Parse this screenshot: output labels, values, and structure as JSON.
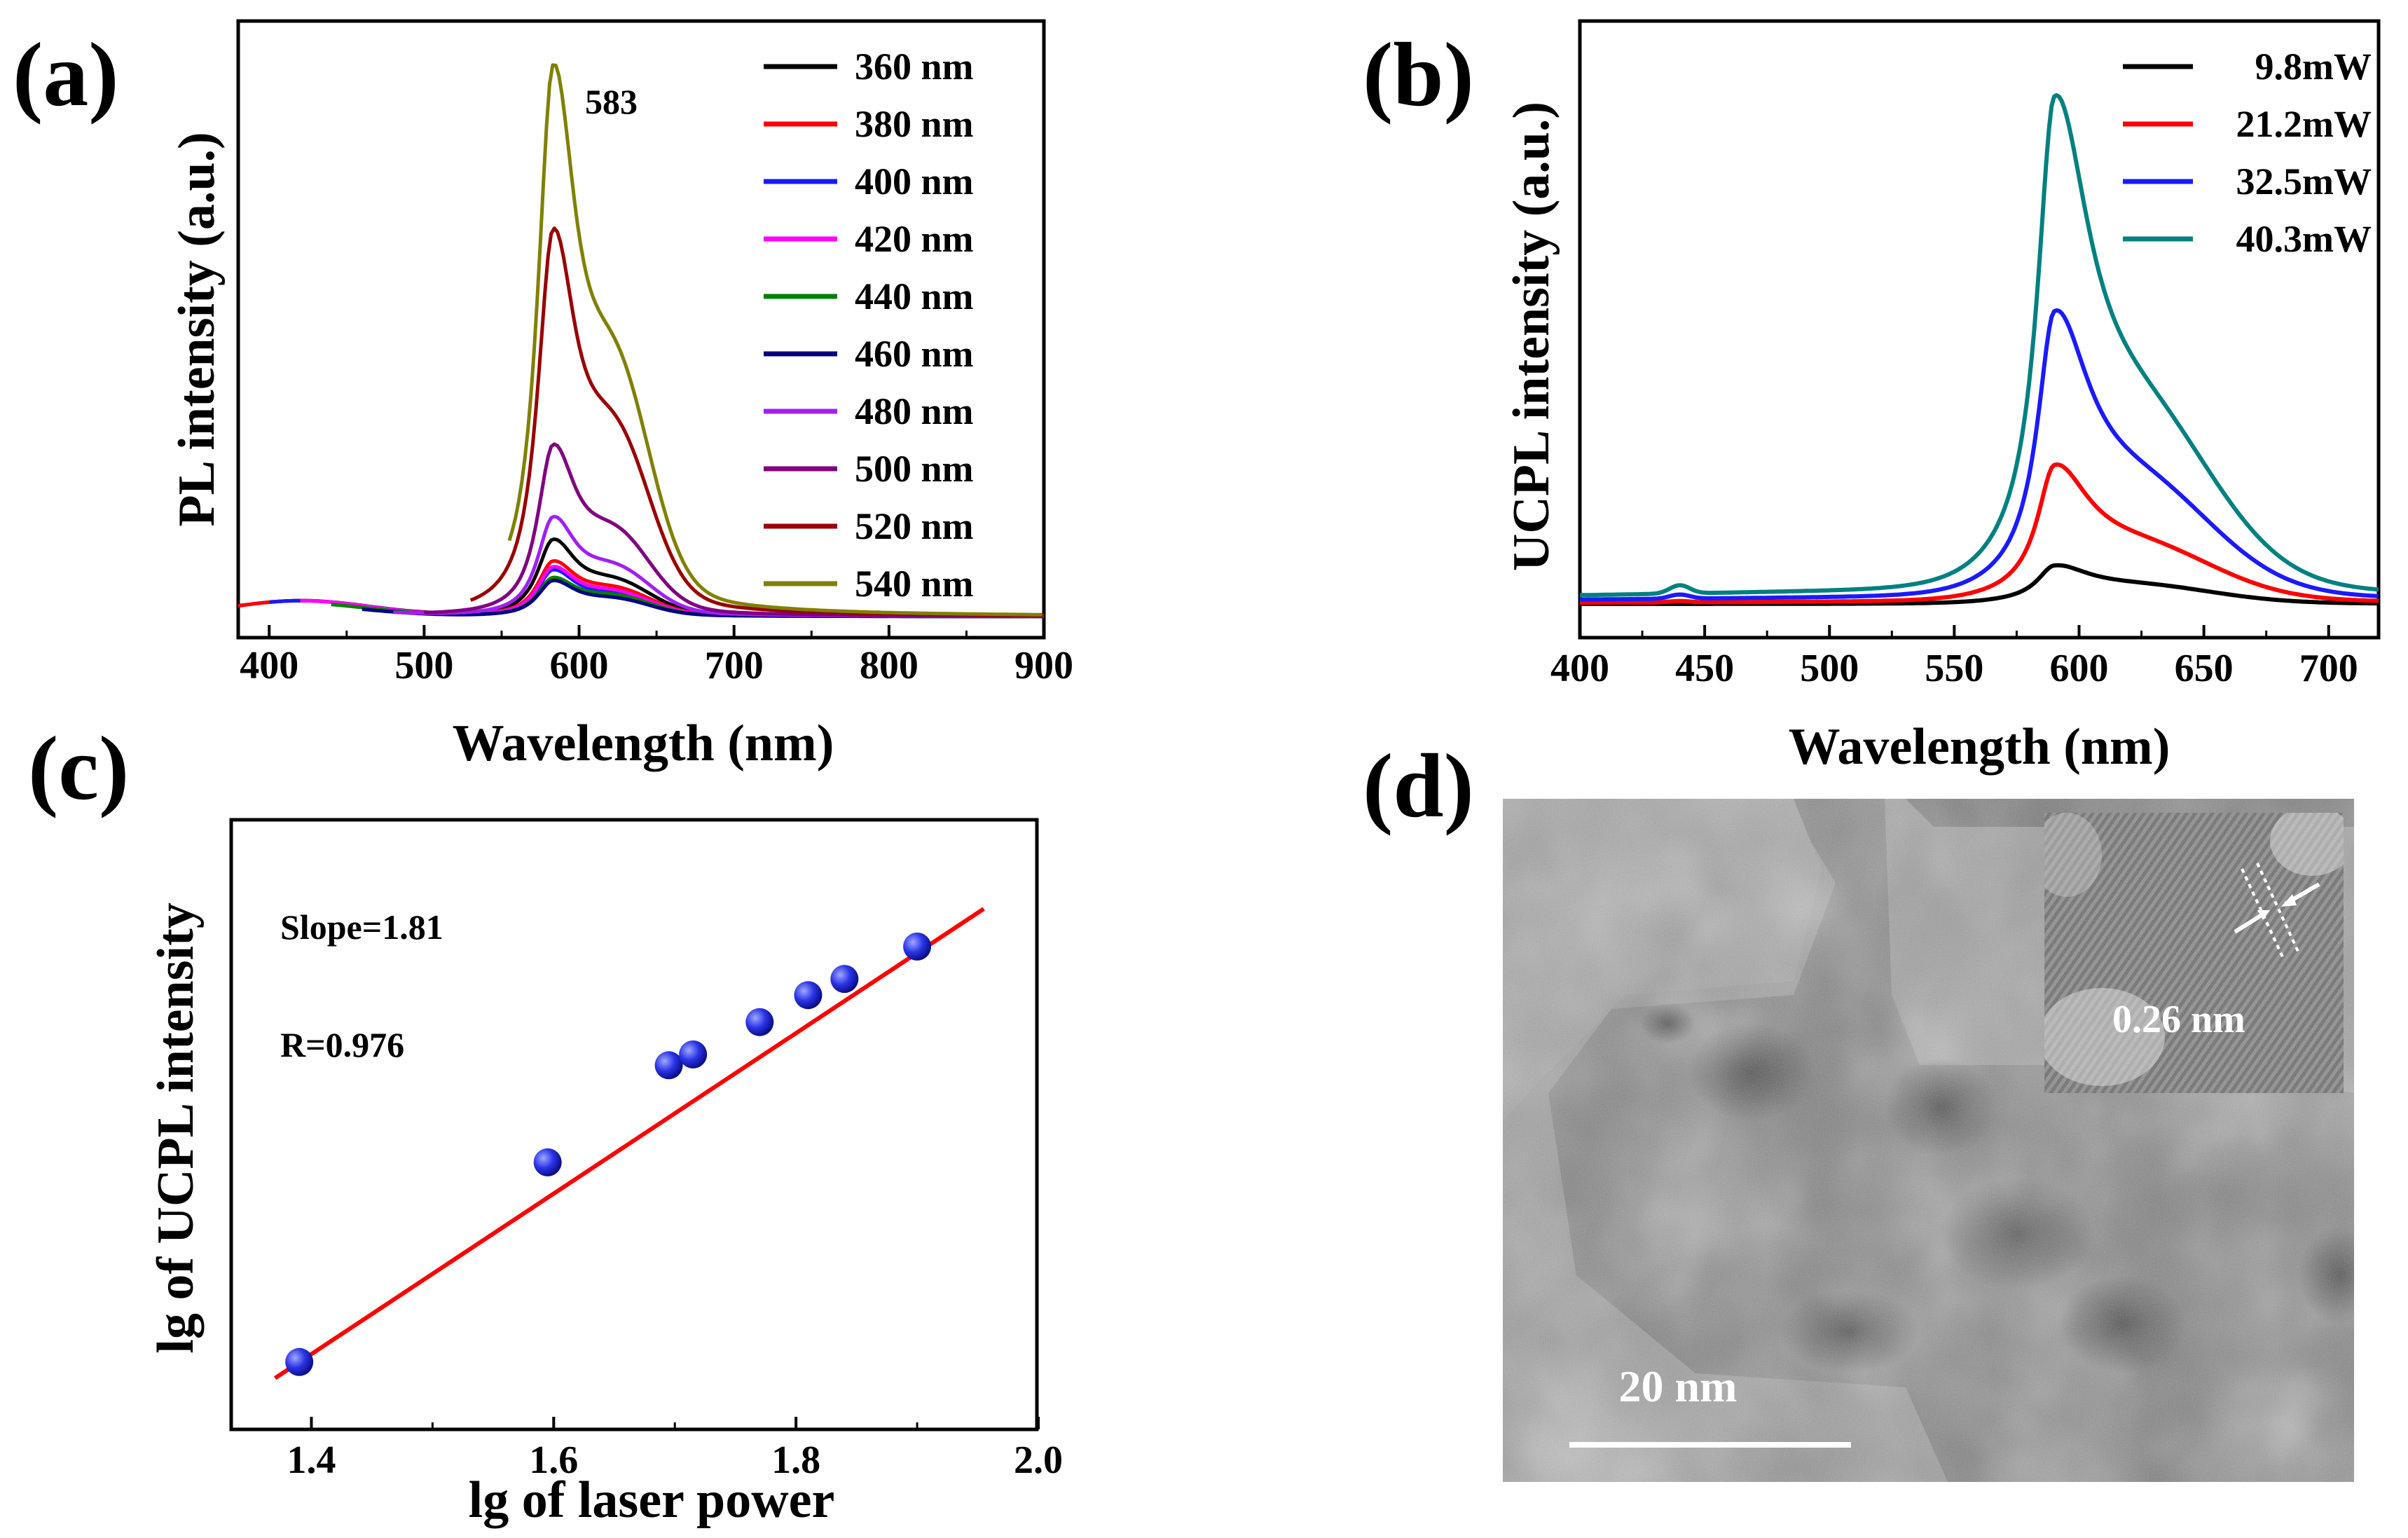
{
  "panels": {
    "a": {
      "letter": "(a)"
    },
    "b": {
      "letter": "(b)"
    },
    "c": {
      "letter": "(c)"
    },
    "d": {
      "letter": "(d)"
    }
  },
  "colors": {
    "black": "#000000",
    "red": "#ff0000",
    "blue": "#1a1aff",
    "magenta": "#ff00ff",
    "green": "#008000",
    "navy": "#000080",
    "violet": "#a020f0",
    "purple": "#800080",
    "darkred": "#990000",
    "olive": "#808000",
    "teal": "#008080",
    "fitred": "#ff0000"
  },
  "chart_data": [
    {
      "id": "a",
      "type": "line",
      "title": "",
      "xlabel": "Wavelength (nm)",
      "ylabel": "PL intensity (a.u.)",
      "xlim": [
        380,
        900
      ],
      "ylim": [
        0,
        1.0
      ],
      "xticks": [
        400,
        500,
        600,
        700,
        800,
        900
      ],
      "peak_annotation": {
        "x": 583,
        "text": "583"
      },
      "legend_position": "top-right",
      "series": [
        {
          "name": "360 nm",
          "color": "#000000",
          "peak": 0.14,
          "shoulder": 0.05,
          "band": 0.03,
          "start": 380
        },
        {
          "name": "380 nm",
          "color": "#ff0000",
          "peak": 0.1,
          "shoulder": 0.04,
          "band": 0.03,
          "start": 380
        },
        {
          "name": "400 nm",
          "color": "#1a1aff",
          "peak": 0.085,
          "shoulder": 0.03,
          "band": 0.03,
          "start": 400
        },
        {
          "name": "420 nm",
          "color": "#ff00ff",
          "peak": 0.09,
          "shoulder": 0.035,
          "band": 0.03,
          "start": 420
        },
        {
          "name": "440 nm",
          "color": "#008000",
          "peak": 0.07,
          "shoulder": 0.03,
          "band": 0.025,
          "start": 440
        },
        {
          "name": "460 nm",
          "color": "#000080",
          "peak": 0.065,
          "shoulder": 0.025,
          "band": 0.02,
          "start": 460
        },
        {
          "name": "480 nm",
          "color": "#a020f0",
          "peak": 0.18,
          "shoulder": 0.07,
          "band": 0.015,
          "start": 480
        },
        {
          "name": "500 nm",
          "color": "#800080",
          "peak": 0.31,
          "shoulder": 0.12,
          "band": 0.01,
          "start": 500
        },
        {
          "name": "520 nm",
          "color": "#990000",
          "peak": 0.7,
          "shoulder": 0.26,
          "band": 0.0,
          "start": 530
        },
        {
          "name": "540 nm",
          "color": "#808000",
          "peak": 1.0,
          "shoulder": 0.35,
          "band": 0.0,
          "start": 555
        }
      ]
    },
    {
      "id": "b",
      "type": "line",
      "title": "",
      "xlabel": "Wavelength (nm)",
      "ylabel": "UCPL intensity (a.u.)",
      "xlim": [
        400,
        720
      ],
      "ylim": [
        0,
        1.0
      ],
      "xticks": [
        400,
        450,
        500,
        550,
        600,
        650,
        700
      ],
      "legend_position": "top-right",
      "series": [
        {
          "name": "9.8mW",
          "color": "#000000",
          "peak": 0.07,
          "tail": 0.03,
          "base": 0.0
        },
        {
          "name": "21.2mW",
          "color": "#ff0000",
          "peak": 0.26,
          "tail": 0.09,
          "base": 0.003
        },
        {
          "name": "32.5mW",
          "color": "#1a1aff",
          "peak": 0.55,
          "tail": 0.18,
          "base": 0.01
        },
        {
          "name": "40.3mW",
          "color": "#008080",
          "peak": 0.97,
          "tail": 0.28,
          "base": 0.02
        }
      ]
    },
    {
      "id": "c",
      "type": "scatter",
      "title": "",
      "xlabel": "lg of laser power",
      "ylabel": "lg of UCPL intensity",
      "xlim": [
        1.35,
        2.0
      ],
      "ylim": [
        0,
        1.0
      ],
      "xticks": [
        1.4,
        1.6,
        1.8,
        2.0
      ],
      "xtick_labels": [
        "1.4",
        "1.6",
        "1.8",
        "2.0"
      ],
      "annotations": [
        "Slope=1.81",
        "R=0.976"
      ],
      "points": [
        {
          "x": 1.39,
          "y": 0.06
        },
        {
          "x": 1.595,
          "y": 0.43
        },
        {
          "x": 1.695,
          "y": 0.61
        },
        {
          "x": 1.715,
          "y": 0.63
        },
        {
          "x": 1.77,
          "y": 0.69
        },
        {
          "x": 1.81,
          "y": 0.74
        },
        {
          "x": 1.84,
          "y": 0.77
        },
        {
          "x": 1.9,
          "y": 0.83
        }
      ],
      "fit": {
        "x": [
          1.37,
          1.955
        ],
        "y": [
          0.03,
          0.9
        ]
      }
    }
  ],
  "micrograph": {
    "scale_bar_label": "20 nm",
    "inset_label": "0.26 nm"
  }
}
